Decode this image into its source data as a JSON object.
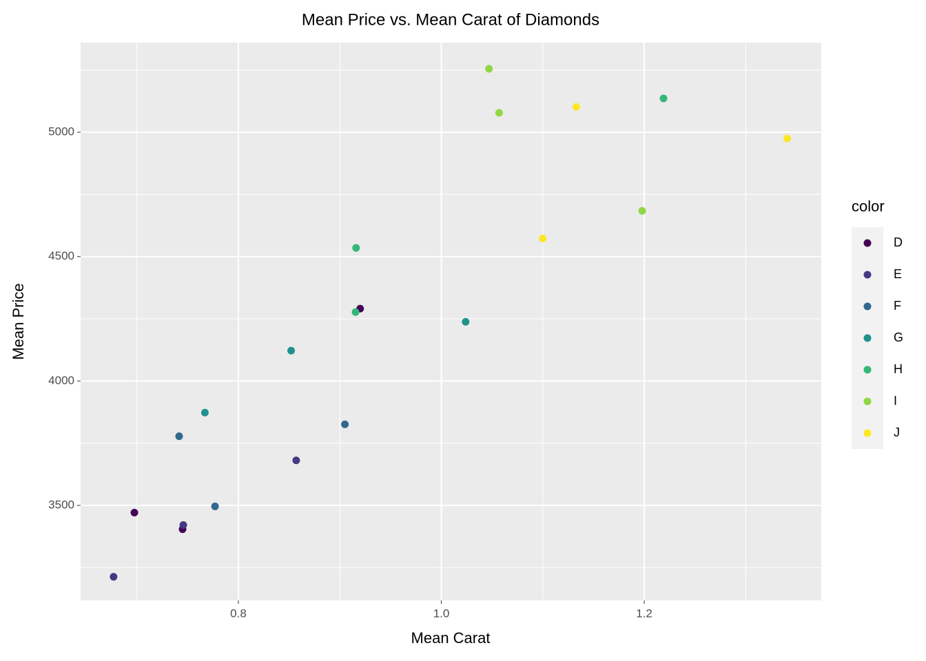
{
  "chart_data": {
    "type": "scatter",
    "title": "Mean Price vs. Mean Carat of Diamonds",
    "x_label": "Mean Carat",
    "y_label": "Mean Price",
    "legend_title": "color",
    "legend": "right",
    "grid": true,
    "xlim": [
      0.6445,
      1.3745
    ],
    "xticks": [
      {
        "value": 0.8,
        "label": "0.8"
      },
      {
        "value": 1.0,
        "label": "1.0"
      },
      {
        "value": 1.2,
        "label": "1.2"
      }
    ],
    "ylim": [
      3118,
      5360
    ],
    "yticks": [
      3500,
      4000,
      4500,
      5000
    ],
    "series": [
      {
        "name": "D",
        "color": "#440154",
        "x": [
          0.6975,
          0.745,
          0.92
        ],
        "values": [
          3471,
          3404,
          4291
        ]
      },
      {
        "name": "E",
        "color": "#443983",
        "x": [
          0.677,
          0.7457,
          0.857
        ],
        "values": [
          3213,
          3421,
          3681
        ]
      },
      {
        "name": "F",
        "color": "#31688e",
        "x": [
          0.7416,
          0.777,
          0.905
        ],
        "values": [
          3778,
          3496,
          3826
        ]
      },
      {
        "name": "G",
        "color": "#21918c",
        "x": [
          0.767,
          0.852,
          1.024
        ],
        "values": [
          3873,
          4122,
          4238
        ]
      },
      {
        "name": "H",
        "color": "#35b779",
        "x": [
          0.916,
          0.9155,
          1.219
        ],
        "values": [
          4535,
          4277,
          5136
        ]
      },
      {
        "name": "I",
        "color": "#90d743",
        "x": [
          1.047,
          1.057,
          1.198
        ],
        "values": [
          5255,
          5078,
          4684
        ]
      },
      {
        "name": "J",
        "color": "#fde725",
        "x": [
          1.133,
          1.1,
          1.341
        ],
        "values": [
          5102,
          4573,
          4975
        ]
      }
    ]
  }
}
